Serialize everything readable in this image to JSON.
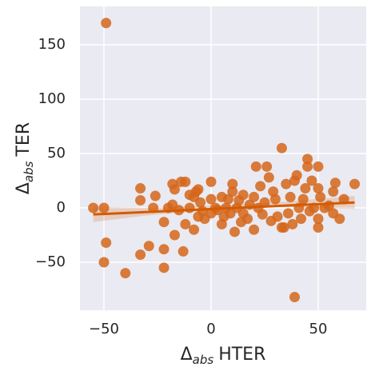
{
  "chart_data": {
    "type": "scatter",
    "xlabel": {
      "symbol": "Δ",
      "subscript": "abs",
      "text": "HTER"
    },
    "ylabel": {
      "symbol": "Δ",
      "subscript": "abs",
      "text": "TER"
    },
    "xlim": [
      -61.2,
      72.4
    ],
    "ylim": [
      -94.1,
      185.3
    ],
    "xticks": [
      {
        "value": -50,
        "label": "−50"
      },
      0,
      50
    ],
    "yticks": [
      {
        "value": -50,
        "label": "−50"
      },
      0,
      50,
      100,
      150
    ],
    "grid": true,
    "background": "#eaeaf2",
    "series": [
      {
        "color": "#d5661a",
        "x": [
          -49,
          -55,
          -50,
          -49,
          -50,
          -40,
          -33,
          -33,
          -33,
          -29,
          -27,
          -26,
          -22,
          -22,
          -22,
          -20,
          -18,
          -17,
          -18,
          -17,
          -14,
          -12,
          -13,
          -12,
          -10,
          -8,
          -7,
          -6,
          -5,
          -4,
          -3,
          0,
          0,
          0,
          2,
          3,
          5,
          5,
          7,
          8,
          9,
          10,
          10,
          11,
          12,
          13,
          15,
          15,
          17,
          18,
          20,
          20,
          21,
          22,
          23,
          24,
          25,
          26,
          27,
          28,
          29,
          30,
          31,
          33,
          34,
          35,
          36,
          37,
          38,
          39,
          39,
          40,
          41,
          42,
          43,
          44,
          45,
          45,
          46,
          47,
          48,
          50,
          50,
          50,
          50,
          51,
          53,
          55,
          57,
          57,
          58,
          60,
          62,
          67,
          -8,
          -6,
          -15,
          -10,
          14,
          6,
          33
        ],
        "values": [
          170,
          0,
          0,
          -32,
          -50,
          -60,
          18,
          7,
          -43,
          -35,
          0,
          11,
          -38,
          -55,
          -13,
          0,
          3,
          -25,
          22,
          17,
          24,
          24,
          -40,
          -15,
          0,
          10,
          15,
          17,
          5,
          -3,
          -10,
          24,
          8,
          -5,
          0,
          -2,
          10,
          -15,
          0,
          8,
          -5,
          22,
          15,
          -22,
          0,
          7,
          12,
          -5,
          -10,
          3,
          -20,
          10,
          38,
          0,
          20,
          -6,
          5,
          38,
          28,
          -12,
          15,
          8,
          -8,
          55,
          -18,
          22,
          -5,
          10,
          -15,
          25,
          -82,
          30,
          0,
          -10,
          8,
          18,
          45,
          38,
          -3,
          25,
          0,
          38,
          -10,
          18,
          -18,
          10,
          0,
          2,
          15,
          -5,
          23,
          -10,
          8,
          22,
          -20,
          -8,
          -2,
          12,
          -13,
          -8,
          -18
        ]
      }
    ],
    "regression": {
      "color": "#d45a00",
      "x": [
        -55,
        67
      ],
      "values": [
        -6,
        5
      ],
      "ci_x": [
        -55,
        -30,
        0,
        30,
        67
      ],
      "ci_lower": [
        -13,
        -7,
        -2,
        1,
        -1
      ],
      "ci_upper": [
        1,
        0,
        2,
        5,
        11
      ]
    }
  }
}
